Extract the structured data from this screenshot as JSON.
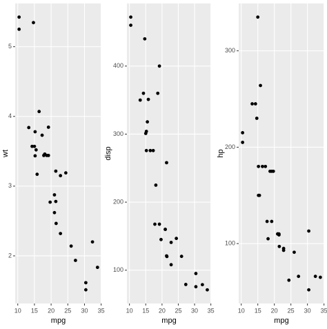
{
  "chart_data": [
    {
      "type": "scatter",
      "xlabel": "mpg",
      "ylabel": "wt",
      "x": [
        21,
        21,
        22.8,
        21.4,
        18.7,
        18.1,
        14.3,
        24.4,
        22.8,
        19.2,
        17.8,
        16.4,
        17.3,
        15.2,
        10.4,
        10.4,
        14.7,
        32.4,
        30.4,
        33.9,
        21.5,
        15.5,
        15.2,
        13.3,
        19.2,
        27.3,
        26,
        30.4,
        15.8,
        19.7,
        15,
        21.4
      ],
      "values": [
        2.62,
        2.875,
        2.32,
        3.215,
        3.44,
        3.46,
        3.57,
        3.19,
        3.15,
        3.44,
        3.44,
        4.07,
        3.73,
        3.78,
        5.25,
        5.424,
        5.345,
        2.2,
        1.615,
        1.835,
        2.465,
        3.52,
        3.435,
        3.84,
        3.845,
        1.935,
        2.14,
        1.513,
        3.17,
        2.77,
        3.57,
        2.78
      ],
      "xlim": [
        9.225,
        35.075
      ],
      "xticks": [
        10,
        15,
        20,
        25,
        30,
        35
      ],
      "ylim": [
        1.317,
        5.62
      ],
      "yticks": [
        2,
        3,
        4,
        5
      ],
      "grid": true,
      "color": "#000000"
    },
    {
      "type": "scatter",
      "xlabel": "mpg",
      "ylabel": "disp",
      "x": [
        21,
        21,
        22.8,
        21.4,
        18.7,
        18.1,
        14.3,
        24.4,
        22.8,
        19.2,
        17.8,
        16.4,
        17.3,
        15.2,
        10.4,
        10.4,
        14.7,
        32.4,
        30.4,
        33.9,
        21.5,
        15.5,
        15.2,
        13.3,
        19.2,
        27.3,
        26,
        30.4,
        15.8,
        19.7,
        15,
        21.4
      ],
      "values": [
        160,
        160,
        108,
        258,
        360,
        225,
        360,
        146.7,
        140.8,
        167.6,
        167.6,
        275.8,
        275.8,
        275.8,
        472,
        460,
        440,
        78.7,
        75.7,
        71.1,
        120.1,
        318,
        304,
        350,
        400,
        79,
        120.3,
        95.1,
        351,
        145,
        301,
        121
      ],
      "xlim": [
        9.225,
        35.075
      ],
      "xticks": [
        10,
        15,
        20,
        25,
        30,
        35
      ],
      "ylim": [
        51.055,
        492.045
      ],
      "yticks": [
        100,
        200,
        300,
        400
      ],
      "grid": true,
      "color": "#000000"
    },
    {
      "type": "scatter",
      "xlabel": "mpg",
      "ylabel": "hp",
      "x": [
        21,
        21,
        22.8,
        21.4,
        18.7,
        18.1,
        14.3,
        24.4,
        22.8,
        19.2,
        17.8,
        16.4,
        17.3,
        15.2,
        10.4,
        10.4,
        14.7,
        32.4,
        30.4,
        33.9,
        21.5,
        15.5,
        15.2,
        13.3,
        19.2,
        27.3,
        26,
        30.4,
        15.8,
        19.7,
        15,
        21.4
      ],
      "values": [
        110,
        110,
        93,
        110,
        175,
        105,
        245,
        62,
        95,
        123,
        123,
        180,
        180,
        180,
        205,
        215,
        230,
        66,
        52,
        65,
        97,
        150,
        150,
        245,
        175,
        66,
        91,
        113,
        264,
        175,
        335,
        109
      ],
      "xlim": [
        9.225,
        35.075
      ],
      "xticks": [
        10,
        15,
        20,
        25,
        30,
        35
      ],
      "ylim": [
        37.85,
        349.15
      ],
      "yticks": [
        100,
        200,
        300
      ],
      "grid": true,
      "color": "#000000"
    }
  ]
}
